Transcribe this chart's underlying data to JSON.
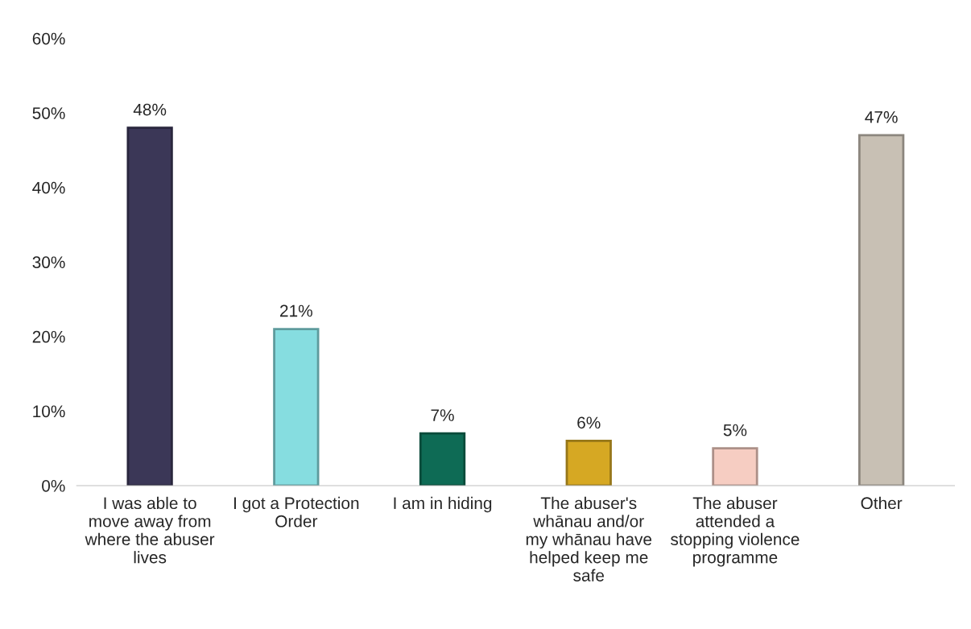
{
  "chart_data": {
    "type": "bar",
    "categories": [
      "I was able to\nmove away from\nwhere the abuser\nlives",
      "I got a Protection\nOrder",
      "I am in hiding",
      "The abuser's\nwhānau and/or\nmy whānau have\nhelped keep me\nsafe",
      "The abuser\nattended a\nstopping violence\nprogramme",
      "Other"
    ],
    "values": [
      48,
      21,
      7,
      6,
      5,
      47
    ],
    "colors": [
      "#3b3757",
      "#86dde0",
      "#0e6b55",
      "#d6a823",
      "#f6cdc2",
      "#c8c0b4"
    ],
    "value_labels": [
      "48%",
      "21%",
      "7%",
      "6%",
      "5%",
      "47%"
    ],
    "ylim": [
      0,
      60
    ],
    "yticks": [
      {
        "value": 0,
        "label": "0%"
      },
      {
        "value": 10,
        "label": "10%"
      },
      {
        "value": 20,
        "label": "20%"
      },
      {
        "value": 30,
        "label": "30%"
      },
      {
        "value": 40,
        "label": "40%"
      },
      {
        "value": 50,
        "label": "50%"
      },
      {
        "value": 60,
        "label": "60%"
      }
    ],
    "grid": false,
    "legend": false
  }
}
